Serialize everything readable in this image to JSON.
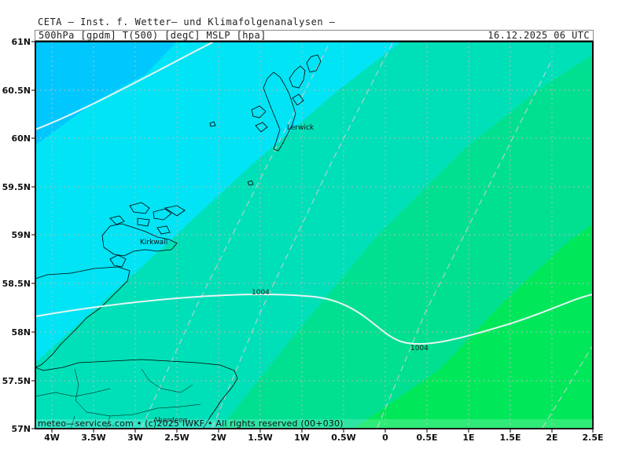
{
  "header": {
    "title": "CETA — Inst. f. Wetter— und Klimafolgenanalysen —",
    "subtitle": "500hPa [gpdm] T(500) [degC] MSLP [hpa]",
    "datetime": "16.12.2025 06 UTC"
  },
  "map": {
    "lat_ticks": [
      "61N",
      "60.5N",
      "60N",
      "59.5N",
      "59N",
      "58.5N",
      "58N",
      "57.5N",
      "57N"
    ],
    "lon_ticks": [
      "4W",
      "3.5W",
      "3W",
      "2.5W",
      "2W",
      "1.5W",
      "1W",
      "0.5W",
      "0",
      "0.5E",
      "1E",
      "1.5E",
      "2E",
      "2.5E"
    ],
    "places": {
      "lerwick": "Lerwick",
      "kirkwall": "Kirkwall",
      "aberdeen": "Aberdeen"
    },
    "isobar_labels": [
      "1004",
      "1004"
    ],
    "colors": {
      "band_1": "#00c8ff",
      "band_2": "#00e4f5",
      "band_3": "#00e0b8",
      "band_4": "#00e090",
      "band_5": "#00e85a",
      "isobar": "#e8f4f4",
      "coast": "#000000",
      "grid": "#b8b8b8"
    }
  },
  "footer": {
    "copyright": "meteo—services.com • (c)2025 IWKF • All rights reserved (00+030)"
  }
}
